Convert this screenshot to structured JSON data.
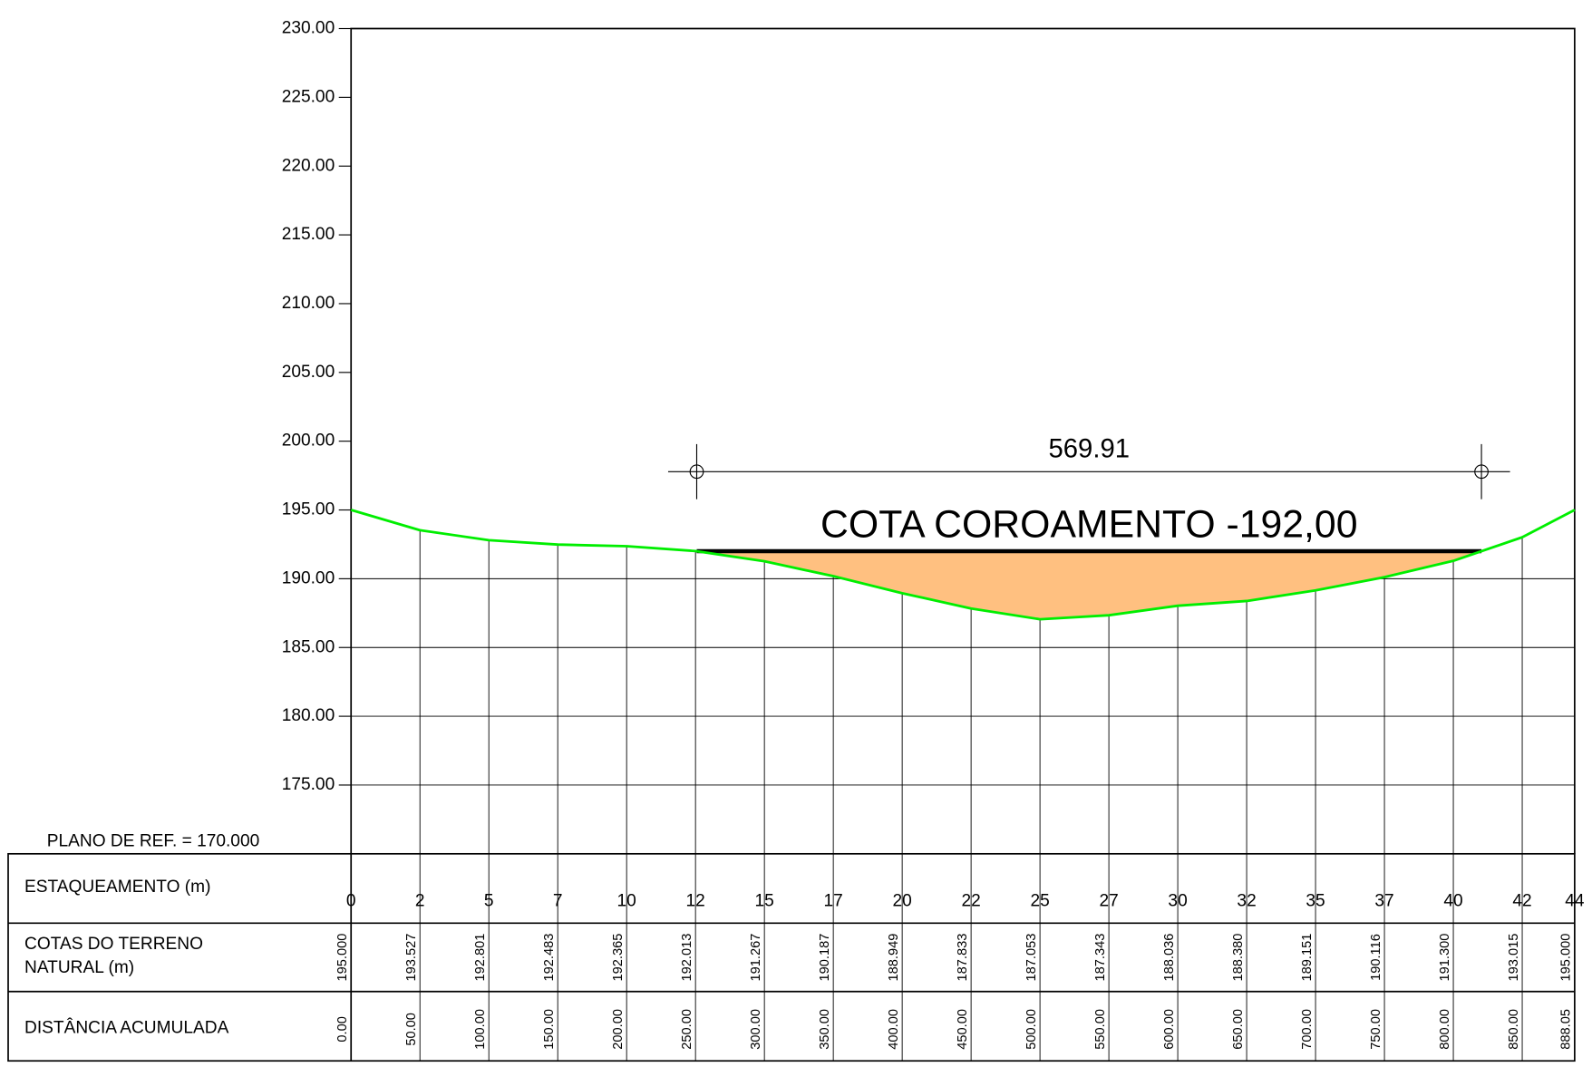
{
  "chart_data": {
    "type": "profile",
    "reference_plane": "PLANO DE REF. = 170.000",
    "crest": {
      "label": "COTA COROAMENTO -192,00",
      "value": 192
    },
    "dimension": {
      "value": 569.91,
      "label": "569.91"
    },
    "row_labels": {
      "stations": "ESTAQUEAMENTO (m)",
      "elevations": [
        "COTAS DO TERRENO",
        "NATURAL (m)"
      ],
      "distances": "DISTÂNCIA ACUMULADA"
    },
    "stations": [
      "0",
      "2",
      "5",
      "7",
      "10",
      "12",
      "15",
      "17",
      "20",
      "22",
      "25",
      "27",
      "30",
      "32",
      "35",
      "37",
      "40",
      "42",
      "44"
    ],
    "x": [
      0,
      50,
      100,
      150,
      200,
      250,
      300,
      350,
      400,
      450,
      500,
      550,
      600,
      650,
      700,
      750,
      800,
      850,
      888.05
    ],
    "x_labels": [
      "0.00",
      "50.00",
      "100.00",
      "150.00",
      "200.00",
      "250.00",
      "300.00",
      "350.00",
      "400.00",
      "450.00",
      "500.00",
      "550.00",
      "600.00",
      "650.00",
      "700.00",
      "750.00",
      "800.00",
      "850.00",
      "888.05"
    ],
    "values": [
      195,
      193.527,
      192.801,
      192.483,
      192.365,
      192.013,
      191.267,
      190.187,
      188.949,
      187.833,
      187.053,
      187.343,
      188.036,
      188.38,
      189.151,
      190.116,
      191.3,
      193.015,
      195
    ],
    "value_labels": [
      "195.000",
      "193.527",
      "192.801",
      "192.483",
      "192.365",
      "192.013",
      "191.267",
      "190.187",
      "188.949",
      "187.833",
      "187.053",
      "187.343",
      "188.036",
      "188.380",
      "189.151",
      "190.116",
      "191.300",
      "193.015",
      "195.000"
    ],
    "terrain_color": "#00ee00",
    "fill_color": "#ffc080",
    "xlim": [
      0,
      888.05
    ],
    "ylim": [
      170,
      230
    ],
    "yticks": [
      {
        "value": 175,
        "label": "175.00"
      },
      {
        "value": 180,
        "label": "180.00"
      },
      {
        "value": 185,
        "label": "185.00"
      },
      {
        "value": 190,
        "label": "190.00"
      },
      {
        "value": 195,
        "label": "195.00"
      },
      {
        "value": 200,
        "label": "200.00"
      },
      {
        "value": 205,
        "label": "205.00"
      },
      {
        "value": 210,
        "label": "210.00"
      },
      {
        "value": 215,
        "label": "215.00"
      },
      {
        "value": 220,
        "label": "220.00"
      },
      {
        "value": 225,
        "label": "225.00"
      },
      {
        "value": 230,
        "label": "230.00"
      }
    ],
    "grid": true
  }
}
